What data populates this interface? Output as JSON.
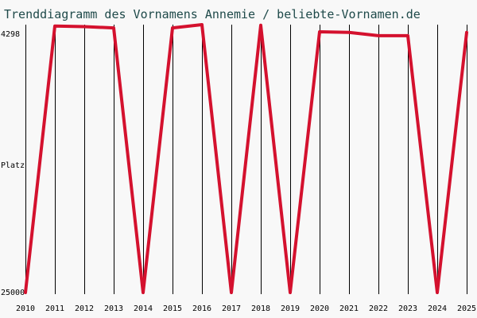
{
  "chart_data": {
    "type": "line",
    "title": "Trenddiagramm des Vornamens Annemie / beliebte-Vornamen.de",
    "ylabel": "Platz",
    "y_axis_inverted": true,
    "ylim": [
      25000,
      4298
    ],
    "y_tick_labels": [
      "4298",
      "25000"
    ],
    "x": [
      2010,
      2011,
      2012,
      2013,
      2014,
      2015,
      2016,
      2017,
      2018,
      2019,
      2020,
      2021,
      2022,
      2023,
      2024,
      2025
    ],
    "series": [
      {
        "values": [
          25000,
          4400,
          4450,
          4550,
          25000,
          4550,
          4300,
          25000,
          4350,
          25000,
          4850,
          4900,
          5150,
          5150,
          25000,
          4900
        ],
        "color": "#d4112e"
      }
    ],
    "grid": "vertical",
    "legend": "none"
  }
}
